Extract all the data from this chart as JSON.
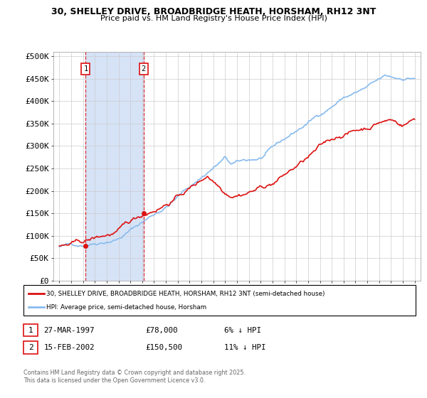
{
  "title_line1": "30, SHELLEY DRIVE, BROADBRIDGE HEATH, HORSHAM, RH12 3NT",
  "title_line2": "Price paid vs. HM Land Registry's House Price Index (HPI)",
  "ylabel_ticks": [
    "£0",
    "£50K",
    "£100K",
    "£150K",
    "£200K",
    "£250K",
    "£300K",
    "£350K",
    "£400K",
    "£450K",
    "£500K"
  ],
  "ytick_values": [
    0,
    50000,
    100000,
    150000,
    200000,
    250000,
    300000,
    350000,
    400000,
    450000,
    500000
  ],
  "xlim_start": 1994.5,
  "xlim_end": 2025.5,
  "ylim_min": 0,
  "ylim_max": 510000,
  "sale1_date": 1997.23,
  "sale1_price": 78000,
  "sale1_label": "1",
  "sale2_date": 2002.12,
  "sale2_price": 150500,
  "sale2_label": "2",
  "hpi_color": "#88bbee",
  "price_color": "#dd1111",
  "vline_color": "#dd1111",
  "shade_color": "#ccddf5",
  "bg_color": "#ffffff",
  "grid_color": "#cccccc",
  "legend_label_price": "30, SHELLEY DRIVE, BROADBRIDGE HEATH, HORSHAM, RH12 3NT (semi-detached house)",
  "legend_label_hpi": "HPI: Average price, semi-detached house, Horsham",
  "footer_line1": "Contains HM Land Registry data © Crown copyright and database right 2025.",
  "footer_line2": "This data is licensed under the Open Government Licence v3.0.",
  "table_row1": [
    "1",
    "27-MAR-1997",
    "£78,000",
    "6% ↓ HPI"
  ],
  "table_row2": [
    "2",
    "15-FEB-2002",
    "£150,500",
    "11% ↓ HPI"
  ]
}
